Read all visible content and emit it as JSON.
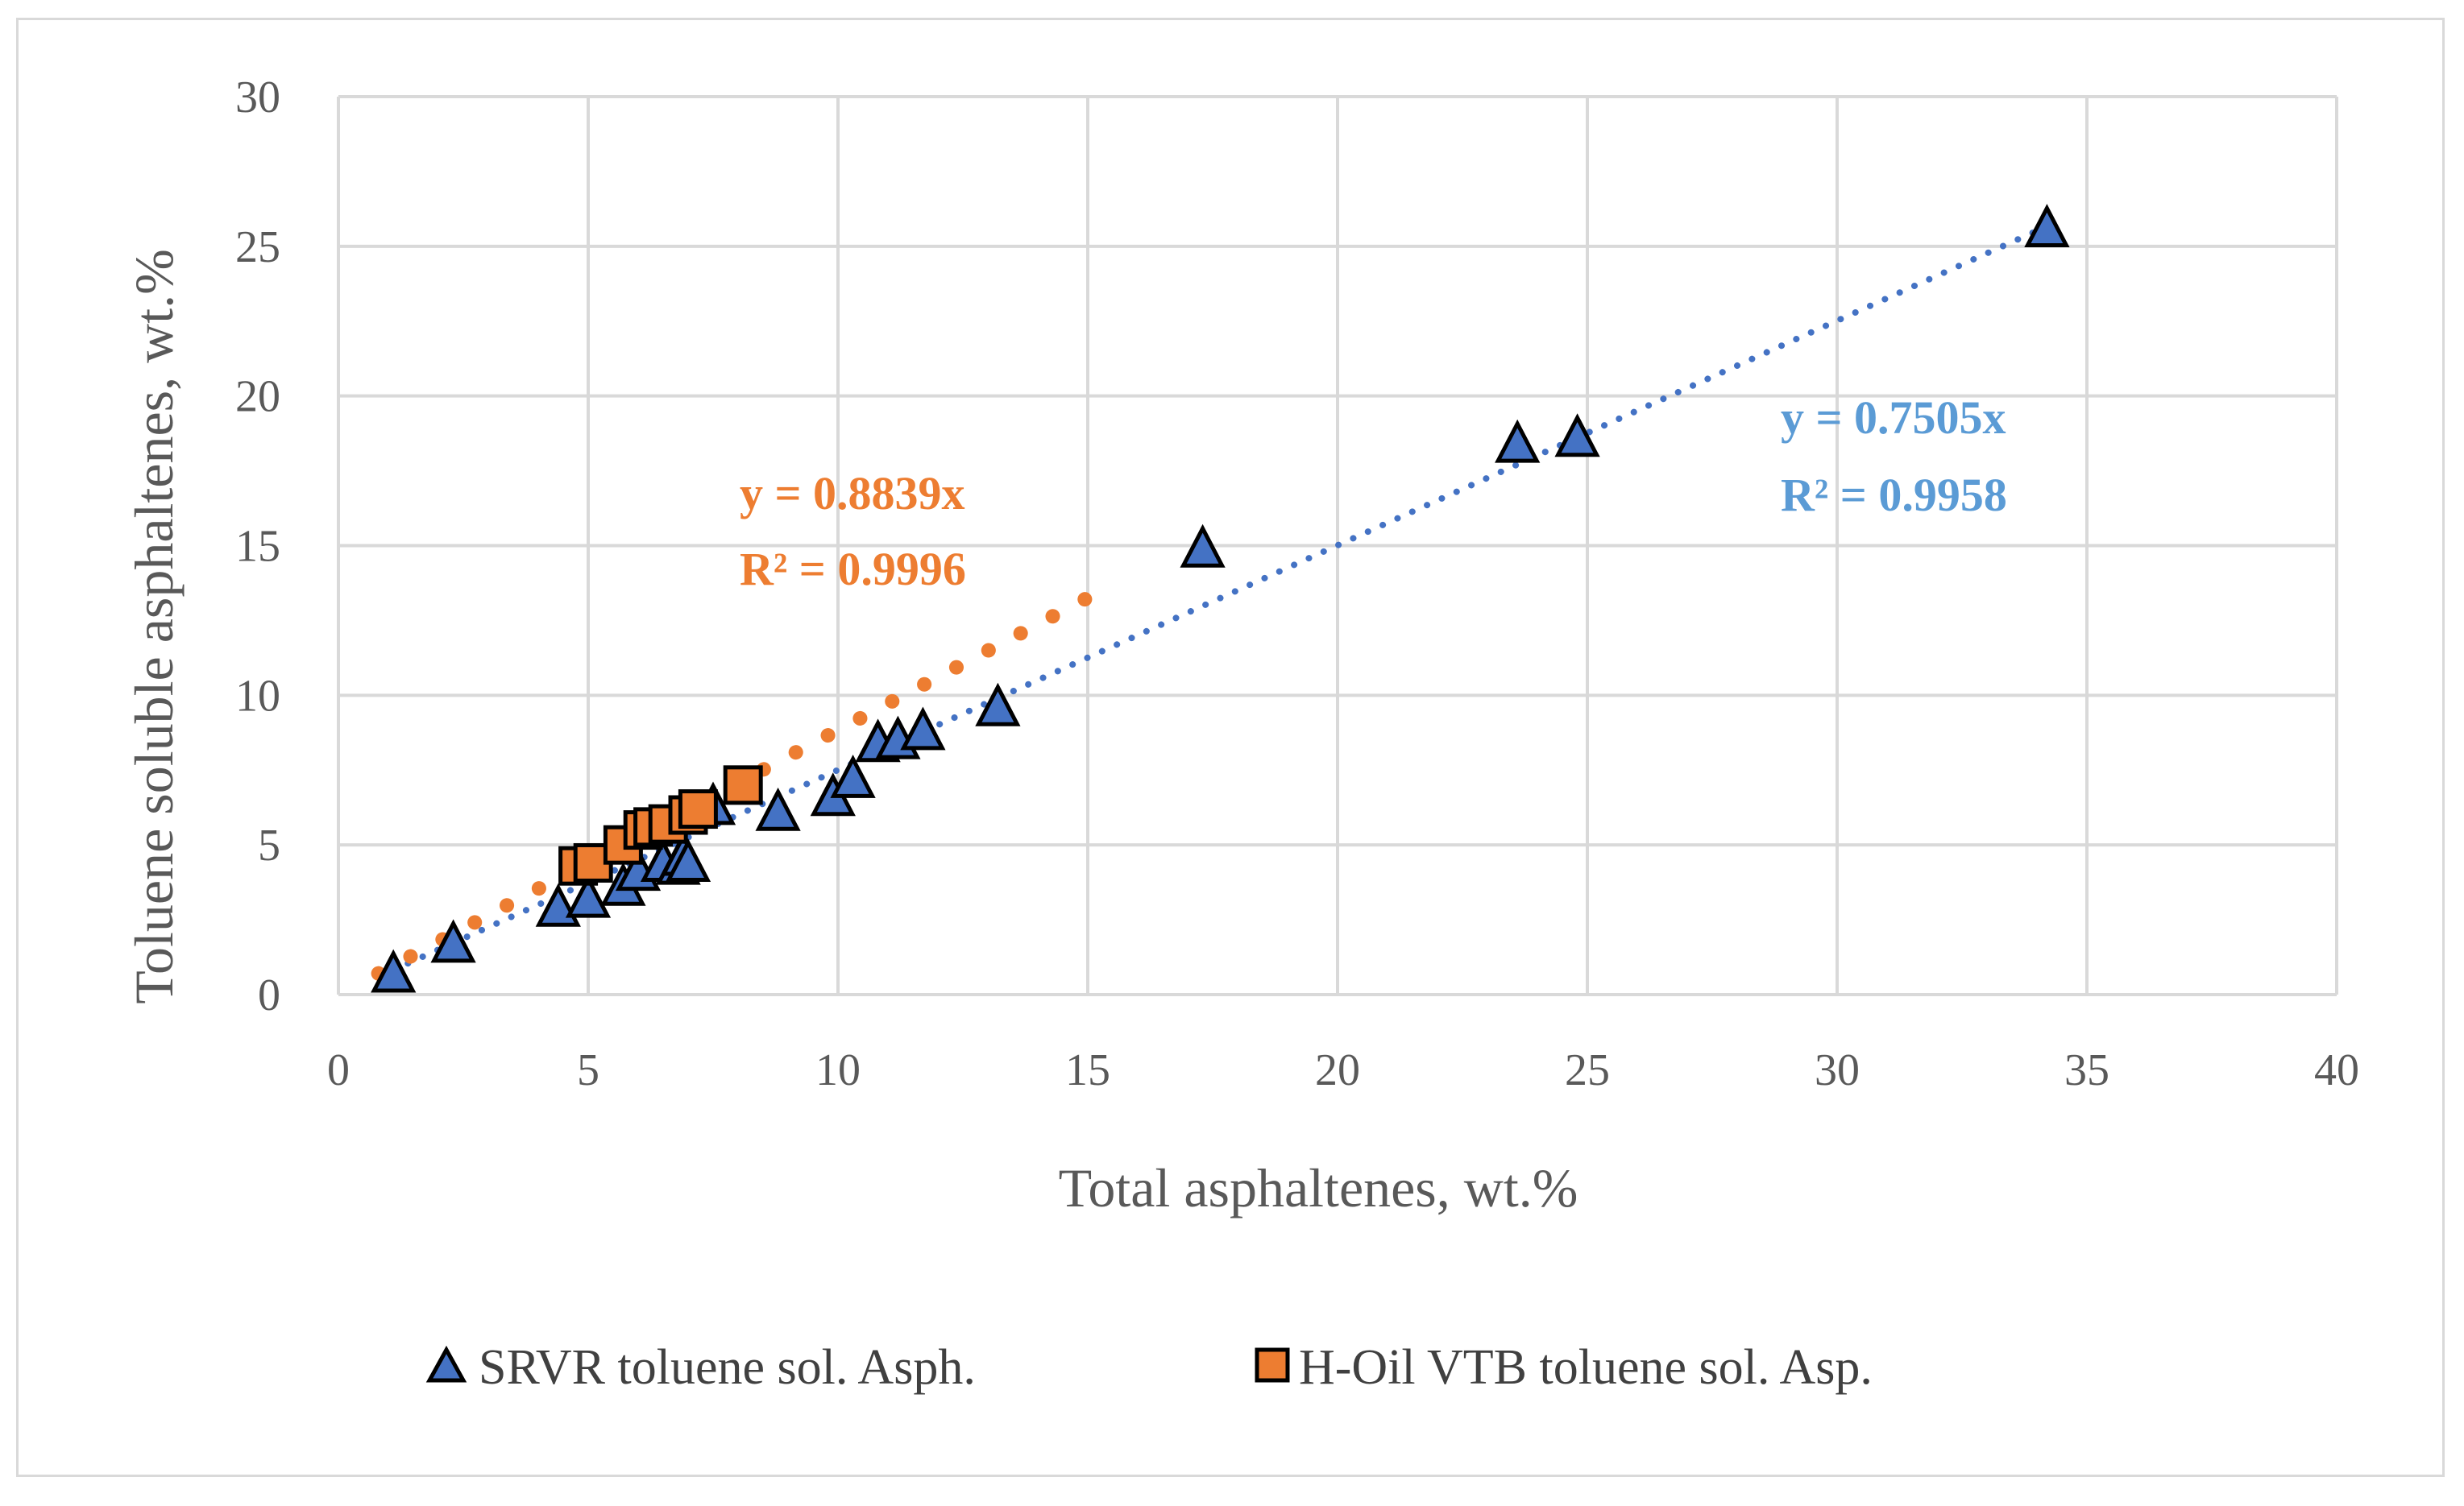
{
  "chart_data": {
    "type": "scatter",
    "title": "",
    "xlabel": "Total asphaltenes, wt.%",
    "ylabel": "Toluene soluble  asphaltenes, wt.%",
    "xlim": [
      0,
      40
    ],
    "ylim": [
      0,
      30
    ],
    "xticks": [
      0,
      5,
      10,
      15,
      20,
      25,
      30,
      35,
      40
    ],
    "yticks": [
      0,
      5,
      10,
      15,
      20,
      25,
      30
    ],
    "grid": true,
    "legend_position": "bottom",
    "series": [
      {
        "name": "SRVR toluene sol. Asph.",
        "marker": "triangle",
        "color": "#4472c4",
        "x": [
          1.1,
          2.3,
          4.4,
          5.0,
          5.7,
          6.0,
          6.5,
          6.8,
          6.9,
          7.0,
          7.5,
          8.8,
          9.9,
          10.3,
          10.8,
          11.2,
          11.7,
          13.2,
          17.3,
          23.6,
          24.8,
          34.2
        ],
        "y": [
          0.7,
          1.7,
          2.9,
          3.2,
          3.6,
          4.1,
          4.4,
          4.3,
          4.6,
          4.4,
          6.3,
          6.1,
          6.6,
          7.2,
          8.4,
          8.5,
          8.8,
          9.6,
          14.9,
          18.4,
          18.6,
          25.6
        ],
        "trendline": {
          "slope": 0.7505,
          "x_range": [
            0.8,
            34.2
          ],
          "style": "dotted",
          "equation": "y = 0.7505x",
          "r2": "R² = 0.9958"
        }
      },
      {
        "name": "H-Oil VTB toluene sol. Asp.",
        "marker": "square",
        "color": "#ed7d31",
        "x": [
          4.8,
          5.1,
          5.7,
          6.1,
          6.3,
          6.6,
          7.0,
          7.2,
          8.1
        ],
        "y": [
          4.3,
          4.4,
          5.0,
          5.5,
          5.6,
          5.7,
          6.0,
          6.2,
          7.0
        ],
        "trendline": {
          "slope": 0.8839,
          "x_range": [
            0.8,
            15.0
          ],
          "style": "dotted",
          "equation": "y = 0.8839x",
          "r2": "R² = 0.9996"
        }
      }
    ]
  }
}
